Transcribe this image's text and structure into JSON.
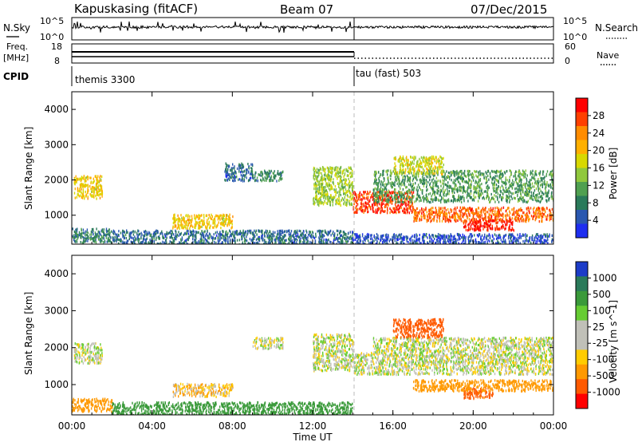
{
  "header": {
    "station": "Kapuskasing (fitACF)",
    "beam": "Beam 07",
    "date": "07/Dec/2015"
  },
  "strip": {
    "nsky_label": "N.Sky",
    "nsky_ticks": [
      "10^5",
      "10^0"
    ],
    "nsky_right_ticks": [
      "10^5",
      "10^0"
    ],
    "nsearch_label": "N.Search",
    "freq_label": "Freq.",
    "freq_unit": "[MHz]",
    "freq_ticks": [
      "18",
      "8"
    ],
    "nave_label": "Nave",
    "nave_ticks": [
      "60",
      "0"
    ],
    "cpid_label": "CPID",
    "cpid_modes": [
      "themis 3300",
      "tau (fast) 503"
    ]
  },
  "panels": {
    "power": {
      "ylabel": "Slant Range [km]",
      "yticks": [
        "4000",
        "3000",
        "2000",
        "1000"
      ],
      "cbar_label": "Power [dB]",
      "cbar_ticks": [
        "28",
        "24",
        "20",
        "16",
        "12",
        "8",
        "4"
      ],
      "cbar_colors": [
        "#ff0000",
        "#ff4000",
        "#ff8c00",
        "#ffb000",
        "#d8d800",
        "#90c83c",
        "#50a050",
        "#2a7a5a",
        "#2a58b0",
        "#1e2ef0"
      ]
    },
    "velocity": {
      "ylabel": "Slant Range [km]",
      "yticks": [
        "4000",
        "3000",
        "2000",
        "1000"
      ],
      "cbar_label": "Velocity [m s^-1]",
      "cbar_ticks": [
        "1000",
        "500",
        "100",
        "25",
        "-25",
        "-100",
        "-500",
        "-1000"
      ],
      "cbar_colors": [
        "#1c3cc8",
        "#2a7a5a",
        "#3a9a3a",
        "#66cc33",
        "#c0c0b8",
        "#c0c0b8",
        "#ffcc00",
        "#ff9900",
        "#ff5a00",
        "#ff0000"
      ]
    }
  },
  "xaxis": {
    "ticks": [
      "00:00",
      "04:00",
      "08:00",
      "12:00",
      "16:00",
      "20:00",
      "00:00"
    ],
    "label": "Time UT"
  },
  "chart_data": [
    {
      "type": "heatmap",
      "title": "Kapuskasing (fitACF)",
      "quantity": "Power",
      "unit": "dB",
      "x_unit": "hours UT",
      "xlim": [
        0,
        24
      ],
      "ylim": [
        180,
        4500
      ],
      "colorbar_range": [
        0,
        30
      ],
      "mode_change_hour": 14,
      "regions": [
        {
          "t0": 0.1,
          "t1": 1.5,
          "r0": 1500,
          "r1": 2150,
          "level": 18
        },
        {
          "t0": 0.0,
          "t1": 2.0,
          "r0": 250,
          "r1": 650,
          "level": 8
        },
        {
          "t0": 2.0,
          "t1": 14.0,
          "r0": 200,
          "r1": 600,
          "level": 6
        },
        {
          "t0": 5.0,
          "t1": 8.0,
          "r0": 650,
          "r1": 1050,
          "level": 18
        },
        {
          "t0": 7.6,
          "t1": 9.0,
          "r0": 2000,
          "r1": 2500,
          "level": 6
        },
        {
          "t0": 9.0,
          "t1": 10.5,
          "r0": 2000,
          "r1": 2300,
          "level": 8
        },
        {
          "t0": 12.0,
          "t1": 14.0,
          "r0": 1300,
          "r1": 2400,
          "level": 14
        },
        {
          "t0": 14.0,
          "t1": 17.0,
          "r0": 1100,
          "r1": 1700,
          "level": 26
        },
        {
          "t0": 17.0,
          "t1": 24.0,
          "r0": 850,
          "r1": 1250,
          "level": 24
        },
        {
          "t0": 19.5,
          "t1": 22.0,
          "r0": 600,
          "r1": 900,
          "level": 28
        },
        {
          "t0": 15.0,
          "t1": 24.0,
          "r0": 1400,
          "r1": 2300,
          "level": 10
        },
        {
          "t0": 16.0,
          "t1": 18.5,
          "r0": 2200,
          "r1": 2700,
          "level": 16
        },
        {
          "t0": 14.0,
          "t1": 24.0,
          "r0": 200,
          "r1": 500,
          "level": 4
        }
      ]
    },
    {
      "type": "heatmap",
      "title": "",
      "quantity": "Velocity",
      "unit": "m s^-1",
      "x_unit": "hours UT",
      "xlim": [
        0,
        24
      ],
      "ylim": [
        180,
        4500
      ],
      "colorbar_range": [
        -1000,
        1000
      ],
      "mode_change_hour": 14,
      "regions": [
        {
          "t0": 0.1,
          "t1": 1.5,
          "r0": 1600,
          "r1": 2150,
          "level": 0
        },
        {
          "t0": 0.0,
          "t1": 2.0,
          "r0": 300,
          "r1": 650,
          "level": -150
        },
        {
          "t0": 2.0,
          "t1": 14.0,
          "r0": 200,
          "r1": 550,
          "level": 150
        },
        {
          "t0": 5.0,
          "t1": 8.0,
          "r0": 700,
          "r1": 1050,
          "level": -50
        },
        {
          "t0": 9.0,
          "t1": 10.5,
          "r0": 2000,
          "r1": 2300,
          "level": 0
        },
        {
          "t0": 12.0,
          "t1": 14.0,
          "r0": 1400,
          "r1": 2400,
          "level": 0
        },
        {
          "t0": 14.0,
          "t1": 24.0,
          "r0": 1300,
          "r1": 1900,
          "level": 0
        },
        {
          "t0": 15.0,
          "t1": 24.0,
          "r0": 1900,
          "r1": 2300,
          "level": 0
        },
        {
          "t0": 16.0,
          "t1": 18.5,
          "r0": 2300,
          "r1": 2800,
          "level": -600
        },
        {
          "t0": 19.5,
          "t1": 21.0,
          "r0": 650,
          "r1": 950,
          "level": -350
        },
        {
          "t0": 17.0,
          "t1": 24.0,
          "r0": 850,
          "r1": 1150,
          "level": -150
        }
      ]
    }
  ]
}
